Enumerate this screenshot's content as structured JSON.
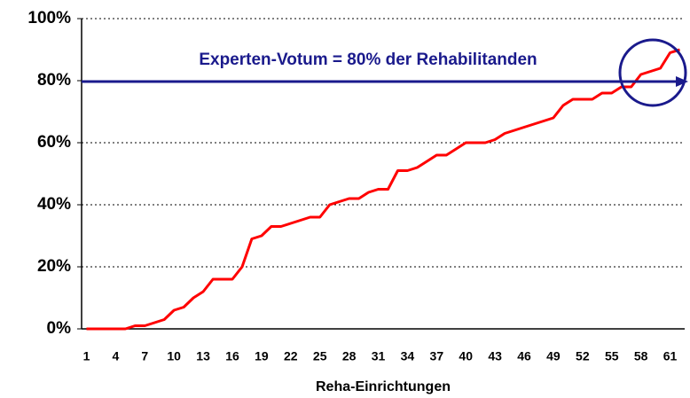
{
  "chart_data": {
    "type": "line",
    "x_label": "Reha-Einrichtungen",
    "annotation": "Experten-Votum = 80% der Rehabilitanden",
    "categories": [
      "1",
      null,
      null,
      "4",
      null,
      null,
      "7",
      null,
      null,
      "10",
      null,
      null,
      "13",
      null,
      null,
      "16",
      null,
      null,
      "19",
      null,
      null,
      "22",
      null,
      null,
      "25",
      null,
      null,
      "28",
      null,
      null,
      "31",
      null,
      null,
      "34",
      null,
      null,
      "37",
      null,
      null,
      "40",
      null,
      null,
      "43",
      null,
      null,
      "46",
      null,
      null,
      "49",
      null,
      null,
      "52",
      null,
      null,
      "55",
      null,
      null,
      "58",
      null,
      null,
      "61",
      null
    ],
    "series": [
      {
        "color": "#ff0000",
        "values": [
          0,
          0,
          0,
          0,
          0,
          1,
          1,
          2,
          3,
          6,
          7,
          10,
          12,
          16,
          16,
          16,
          20,
          29,
          30,
          33,
          33,
          34,
          35,
          36,
          36,
          40,
          41,
          42,
          42,
          44,
          45,
          45,
          51,
          51,
          52,
          54,
          56,
          56,
          58,
          60,
          60,
          60,
          61,
          63,
          64,
          65,
          66,
          67,
          68,
          72,
          74,
          74,
          74,
          76,
          76,
          78,
          78,
          82,
          83,
          84,
          89,
          90
        ]
      }
    ],
    "ylim": [
      0,
      100
    ],
    "yticks": [
      {
        "value": 0,
        "label": "0%"
      },
      {
        "value": 20,
        "label": "20%"
      },
      {
        "value": 40,
        "label": "40%"
      },
      {
        "value": 60,
        "label": "60%"
      },
      {
        "value": 80,
        "label": "80%"
      },
      {
        "value": 100,
        "label": "100%"
      }
    ],
    "grid": true
  }
}
